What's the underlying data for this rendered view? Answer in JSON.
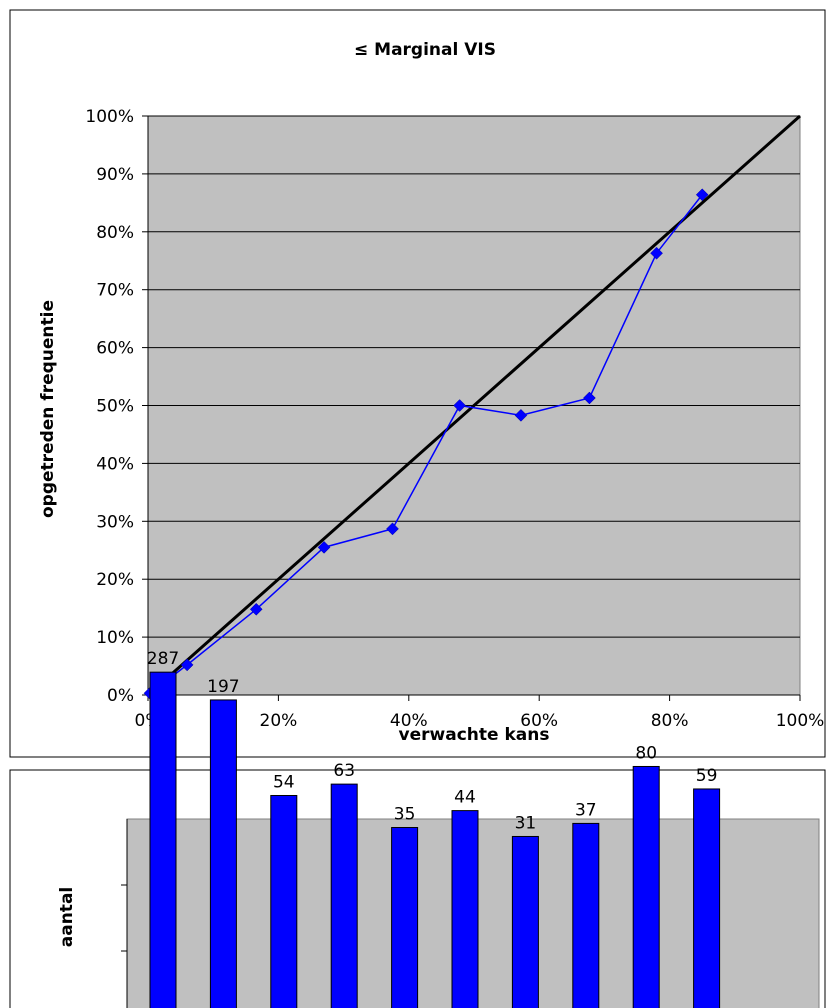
{
  "chart_data": [
    {
      "type": "line",
      "title": "≤ Marginal VIS",
      "xlabel": "verwachte kans",
      "ylabel": "opgetreden frequentie",
      "xlim": [
        0,
        1
      ],
      "ylim": [
        0,
        1
      ],
      "x_ticks": [
        "0%",
        "20%",
        "40%",
        "60%",
        "80%",
        "100%"
      ],
      "y_ticks": [
        "0%",
        "10%",
        "20%",
        "30%",
        "40%",
        "50%",
        "60%",
        "70%",
        "80%",
        "90%",
        "100%"
      ],
      "grid": true,
      "series": [
        {
          "marker": "diamond",
          "color": "#0000ff",
          "x": [
            0.003,
            0.06,
            0.166,
            0.27,
            0.375,
            0.478,
            0.572,
            0.677,
            0.78,
            0.85
          ],
          "y": [
            0.003,
            0.052,
            0.148,
            0.255,
            0.287,
            0.5,
            0.483,
            0.513,
            0.763,
            0.864
          ]
        },
        {
          "color": "#000000",
          "x": [
            0,
            1
          ],
          "y": [
            0,
            1
          ]
        }
      ],
      "colors": {
        "plot_bg": "#c0c0c0",
        "frame": "#000000"
      }
    },
    {
      "type": "bar",
      "ylabel": "aantal",
      "values": [
        287,
        197,
        54,
        63,
        35,
        44,
        31,
        37,
        80,
        59
      ],
      "data_labels": [
        "287",
        "197",
        "54",
        "63",
        "35",
        "44",
        "31",
        "37",
        "80",
        "59"
      ],
      "color": "#0000ff",
      "scale": "log",
      "colors": {
        "plot_bg": "#c0c0c0"
      }
    }
  ]
}
